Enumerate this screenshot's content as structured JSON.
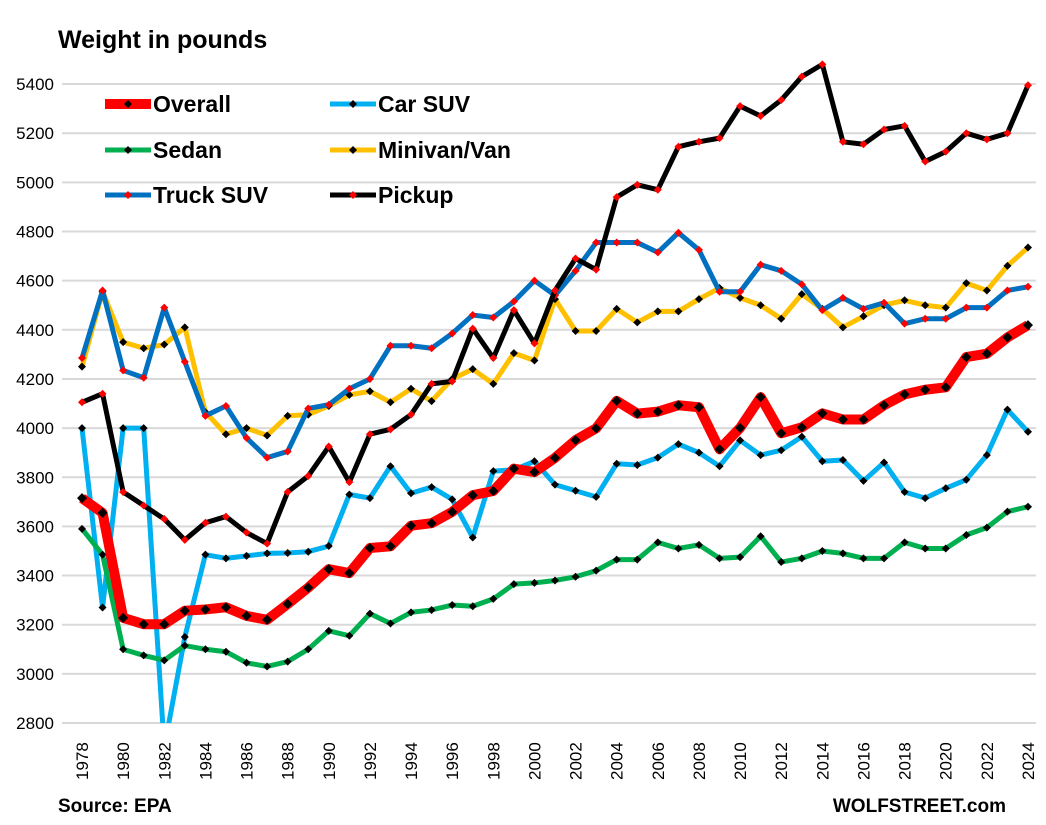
{
  "chart_data": {
    "type": "line",
    "title": "Weight in pounds",
    "xlabel": "",
    "ylabel": "",
    "ylim": [
      2800,
      5500
    ],
    "yticks": [
      2800,
      3000,
      3200,
      3400,
      3600,
      3800,
      4000,
      4200,
      4400,
      4600,
      4800,
      5000,
      5200,
      5400
    ],
    "xticks": [
      1978,
      1980,
      1982,
      1984,
      1986,
      1988,
      1990,
      1992,
      1994,
      1996,
      1998,
      2000,
      2002,
      2004,
      2006,
      2008,
      2010,
      2012,
      2014,
      2016,
      2018,
      2020,
      2022,
      2024
    ],
    "grid": "horizontal",
    "legend_placement": "top-left",
    "x": [
      1978,
      1979,
      1980,
      1981,
      1982,
      1983,
      1984,
      1985,
      1986,
      1987,
      1988,
      1989,
      1990,
      1991,
      1992,
      1993,
      1994,
      1995,
      1996,
      1997,
      1998,
      1999,
      2000,
      2001,
      2002,
      2003,
      2004,
      2005,
      2006,
      2007,
      2008,
      2009,
      2010,
      2011,
      2012,
      2013,
      2014,
      2015,
      2016,
      2017,
      2018,
      2019,
      2020,
      2021,
      2022,
      2023,
      2024
    ],
    "series": [
      {
        "name": "Overall",
        "color": "#ff0000",
        "marker_color": "#000000",
        "values": [
          3715,
          3655,
          3228,
          3202,
          3202,
          3257,
          3262,
          3271,
          3236,
          3220,
          3284,
          3351,
          3426,
          3410,
          3512,
          3519,
          3603,
          3613,
          3659,
          3727,
          3744,
          3835,
          3821,
          3879,
          3951,
          3999,
          4111,
          4059,
          4067,
          4093,
          4085,
          3914,
          4001,
          4126,
          3979,
          4003,
          4060,
          4035,
          4035,
          4093,
          4137,
          4156,
          4166,
          4289,
          4303,
          4369,
          4419
        ]
      },
      {
        "name": "Car SUV",
        "color": "#00b0f0",
        "marker_color": "#000000",
        "values": [
          4000,
          3270,
          4000,
          4000,
          2700,
          3150,
          3485,
          3470,
          3480,
          3490,
          3492,
          3497,
          3520,
          3730,
          3715,
          3845,
          3735,
          3760,
          3710,
          3555,
          3825,
          3830,
          3865,
          3770,
          3745,
          3720,
          3855,
          3850,
          3880,
          3935,
          3900,
          3845,
          3950,
          3890,
          3910,
          3965,
          3865,
          3870,
          3785,
          3860,
          3740,
          3715,
          3755,
          3790,
          3890,
          4075,
          3985
        ]
      },
      {
        "name": "Sedan",
        "color": "#00b050",
        "marker_color": "#000000",
        "values": [
          3590,
          3485,
          3100,
          3075,
          3055,
          3115,
          3100,
          3090,
          3045,
          3030,
          3050,
          3100,
          3175,
          3155,
          3245,
          3205,
          3250,
          3260,
          3280,
          3275,
          3305,
          3365,
          3370,
          3380,
          3395,
          3420,
          3465,
          3465,
          3535,
          3510,
          3525,
          3470,
          3475,
          3560,
          3455,
          3470,
          3500,
          3490,
          3470,
          3470,
          3535,
          3510,
          3510,
          3565,
          3595,
          3660,
          3680
        ]
      },
      {
        "name": "Minivan/Van",
        "color": "#ffc000",
        "marker_color": "#000000",
        "values": [
          4250,
          4555,
          4350,
          4325,
          4340,
          4410,
          4065,
          3975,
          4000,
          3970,
          4050,
          4055,
          4090,
          4135,
          4150,
          4105,
          4160,
          4110,
          4200,
          4240,
          4180,
          4305,
          4275,
          4525,
          4395,
          4395,
          4485,
          4430,
          4475,
          4475,
          4525,
          4570,
          4530,
          4500,
          4445,
          4545,
          4485,
          4410,
          4455,
          4500,
          4520,
          4500,
          4490,
          4590,
          4560,
          4660,
          4735
        ]
      },
      {
        "name": "Truck SUV",
        "color": "#0070c0",
        "marker_color": "#ff0000",
        "values": [
          4285,
          4560,
          4235,
          4205,
          4490,
          4270,
          4050,
          4090,
          3960,
          3880,
          3905,
          4080,
          4095,
          4160,
          4200,
          4335,
          4335,
          4325,
          4385,
          4460,
          4450,
          4515,
          4600,
          4540,
          4640,
          4755,
          4755,
          4755,
          4715,
          4795,
          4725,
          4555,
          4555,
          4665,
          4640,
          4585,
          4480,
          4530,
          4485,
          4510,
          4425,
          4445,
          4445,
          4490,
          4490,
          4560,
          4575
        ]
      },
      {
        "name": "Pickup",
        "color": "#000000",
        "marker_color": "#ff0000",
        "values": [
          4105,
          4140,
          3740,
          3685,
          3630,
          3545,
          3615,
          3640,
          3575,
          3530,
          3740,
          3805,
          3925,
          3780,
          3975,
          3995,
          4055,
          4180,
          4190,
          4405,
          4285,
          4480,
          4345,
          4560,
          4690,
          4645,
          4940,
          4990,
          4970,
          5145,
          5165,
          5180,
          5310,
          5270,
          5335,
          5430,
          5480,
          5165,
          5155,
          5215,
          5230,
          5085,
          5125,
          5200,
          5175,
          5200,
          5395
        ]
      }
    ],
    "source": "Source: EPA",
    "credit": "WOLFSTREET.com"
  }
}
